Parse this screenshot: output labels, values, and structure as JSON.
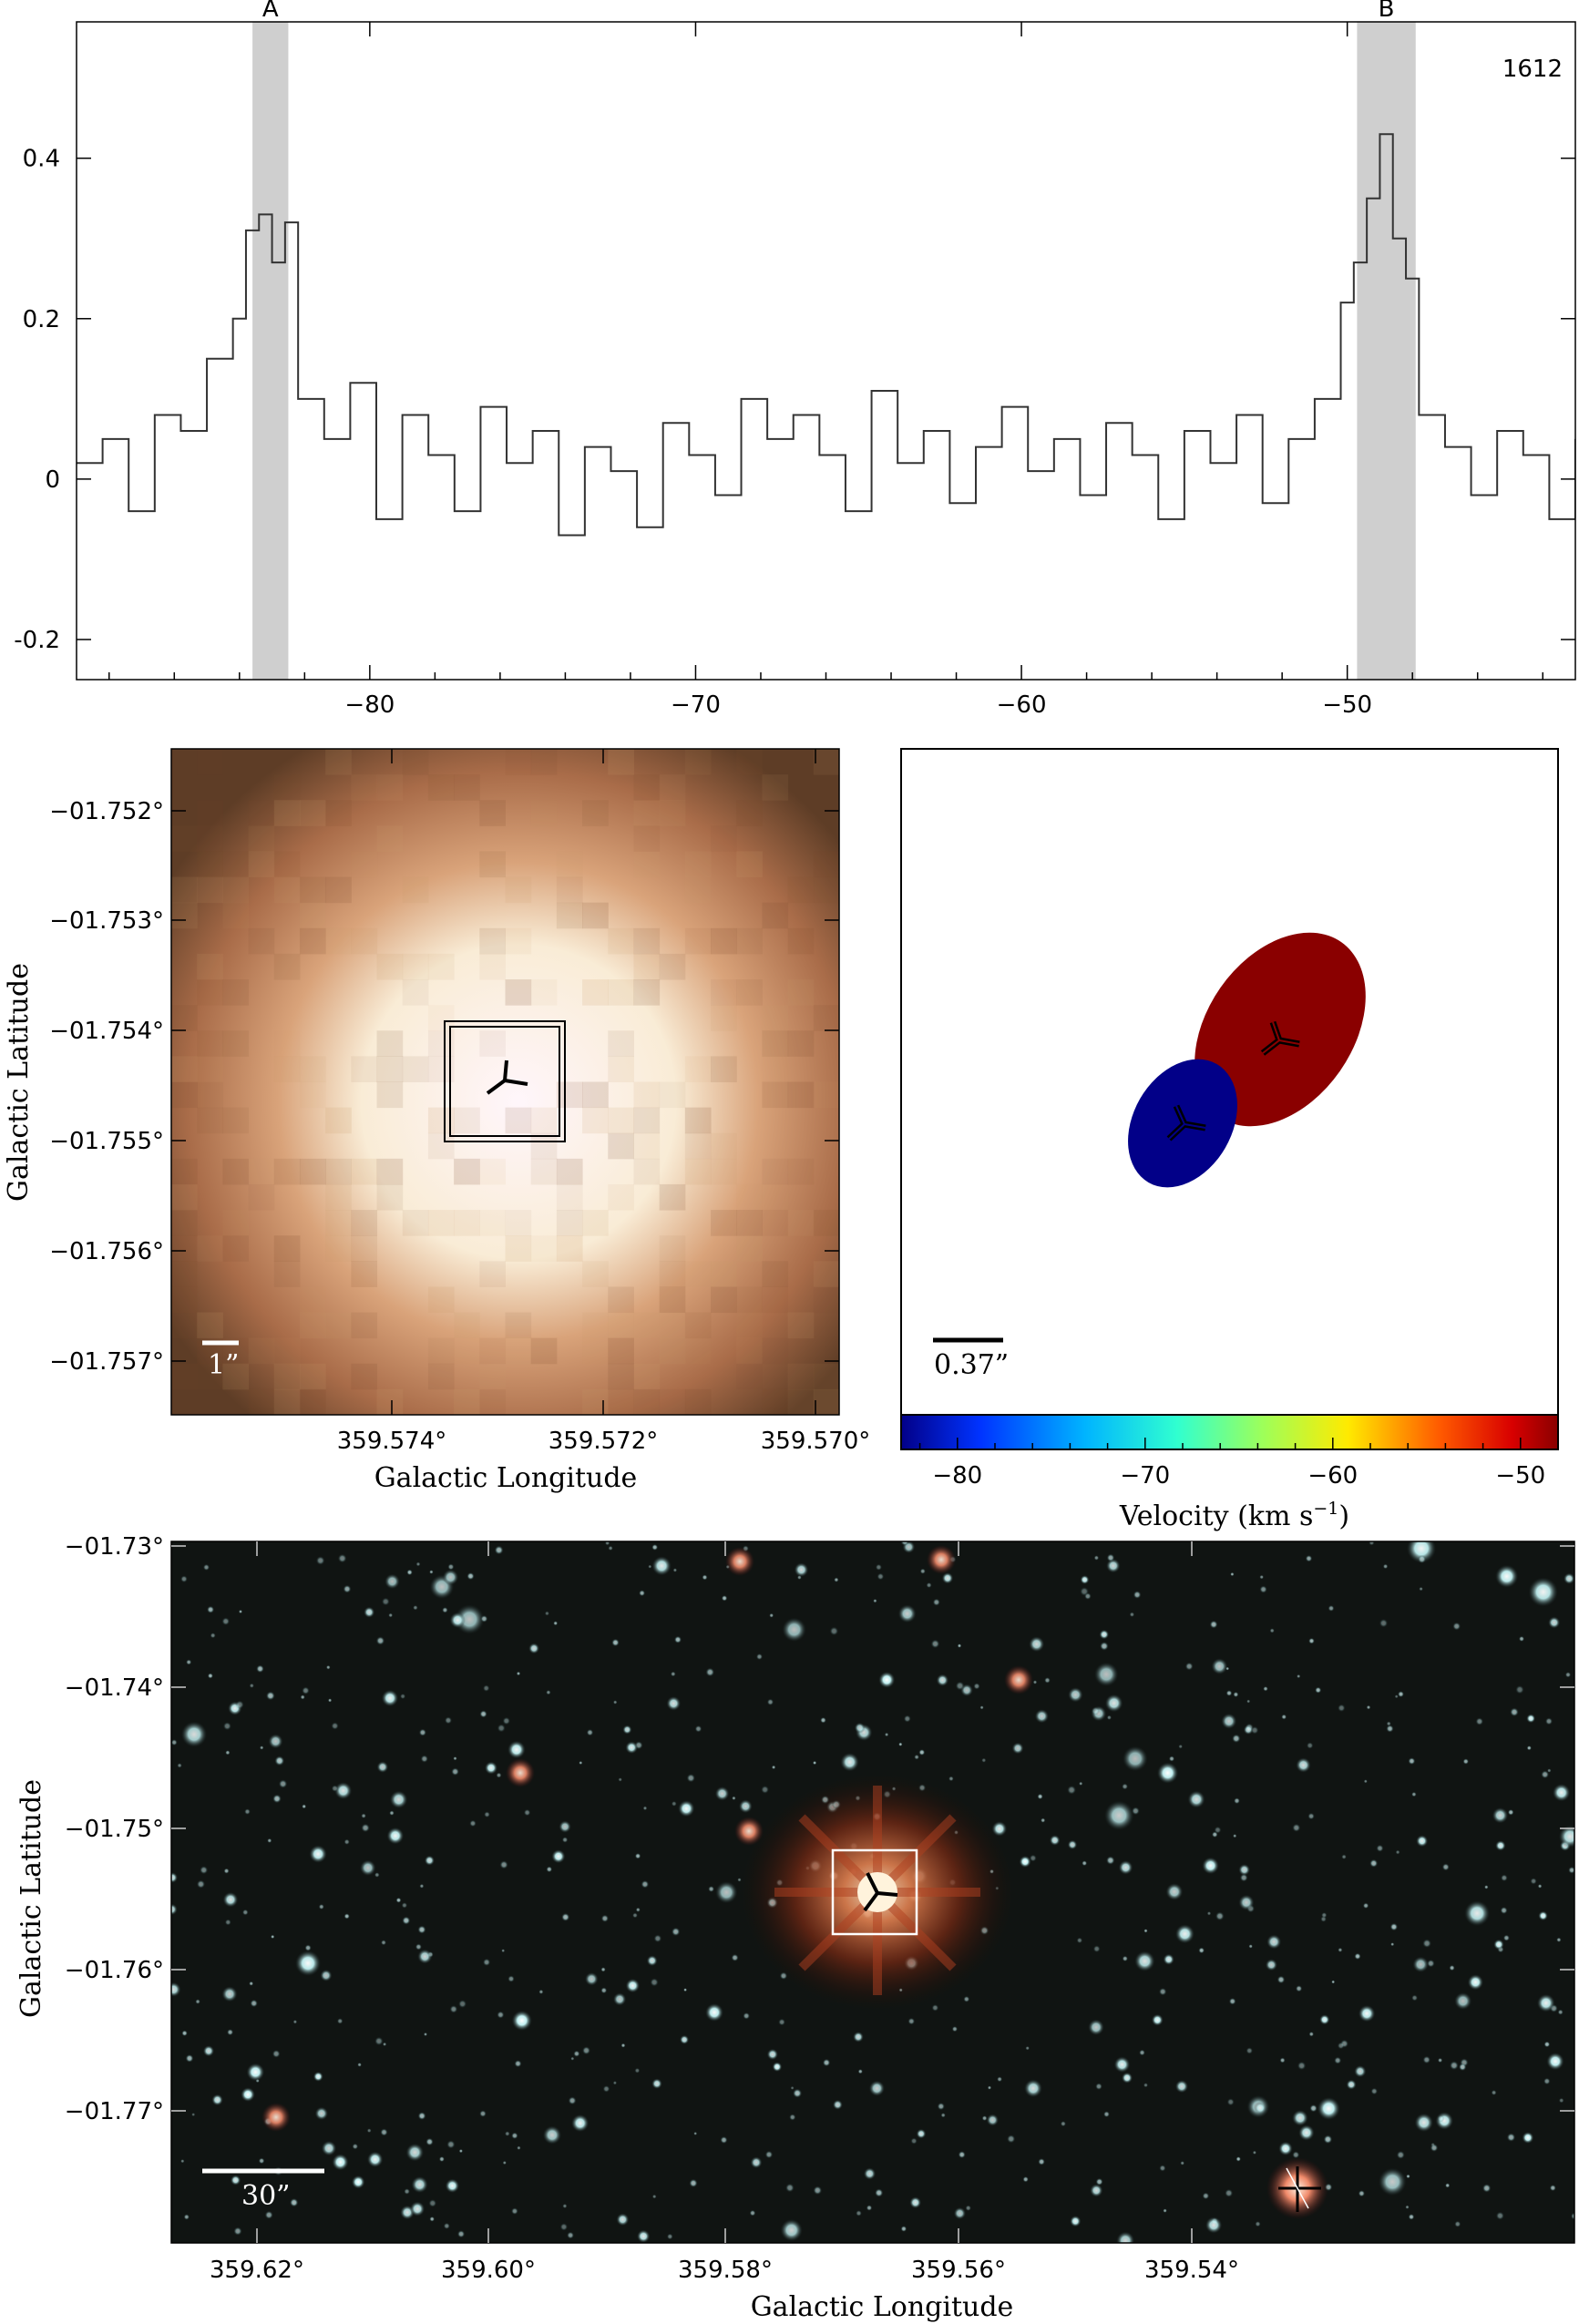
{
  "chart_data": [
    {
      "type": "line",
      "panel": "spectrum",
      "annotation": "1612",
      "xlim": [
        -89.0,
        -43.0
      ],
      "ylim": [
        -0.25,
        0.57
      ],
      "xticks": [
        -80,
        -70,
        -60,
        -50
      ],
      "xtick_labels": [
        "−80",
        "−70",
        "−60",
        "−50"
      ],
      "yticks": [
        -0.2,
        0,
        0.2,
        0.4
      ],
      "ytick_labels": [
        "-0.2",
        "0",
        "0.2",
        "0.4"
      ],
      "highlight_bands": [
        {
          "label": "A",
          "range": [
            -83.6,
            -82.5
          ]
        },
        {
          "label": "B",
          "range": [
            -49.7,
            -47.9
          ]
        }
      ],
      "series": [
        {
          "style": "step",
          "x": [
            -89.0,
            -88.2,
            -87.4,
            -86.6,
            -85.8,
            -85.0,
            -84.2,
            -83.8,
            -83.4,
            -83.0,
            -82.6,
            -82.2,
            -81.4,
            -80.6,
            -79.8,
            -79.0,
            -78.2,
            -77.4,
            -76.6,
            -75.8,
            -75.0,
            -74.2,
            -73.4,
            -72.6,
            -71.8,
            -71.0,
            -70.2,
            -69.4,
            -68.6,
            -67.8,
            -67.0,
            -66.2,
            -65.4,
            -64.6,
            -63.8,
            -63.0,
            -62.2,
            -61.4,
            -60.6,
            -59.8,
            -59.0,
            -58.2,
            -57.4,
            -56.6,
            -55.8,
            -55.0,
            -54.2,
            -53.4,
            -52.6,
            -51.8,
            -51.0,
            -50.2,
            -49.8,
            -49.4,
            -49.0,
            -48.6,
            -48.2,
            -47.8,
            -47.0,
            -46.2,
            -45.4,
            -44.6,
            -43.8,
            -43.0
          ],
          "y": [
            0.02,
            0.05,
            -0.04,
            0.08,
            0.06,
            0.15,
            0.2,
            0.31,
            0.33,
            0.27,
            0.32,
            0.1,
            0.05,
            0.12,
            -0.05,
            0.08,
            0.03,
            -0.04,
            0.09,
            0.02,
            0.06,
            -0.07,
            0.04,
            0.01,
            -0.06,
            0.07,
            0.03,
            -0.02,
            0.1,
            0.05,
            0.08,
            0.03,
            -0.04,
            0.11,
            0.02,
            0.06,
            -0.03,
            0.04,
            0.09,
            0.01,
            0.05,
            -0.02,
            0.07,
            0.03,
            -0.05,
            0.06,
            0.02,
            0.08,
            -0.03,
            0.05,
            0.1,
            0.22,
            0.27,
            0.35,
            0.43,
            0.3,
            0.25,
            0.08,
            0.04,
            -0.02,
            0.06,
            0.03,
            -0.05,
            0.05
          ]
        }
      ]
    },
    {
      "type": "heatmap",
      "panel": "zoomed image",
      "xlabel": "Galactic Longitude",
      "ylabel": "Galactic Latitude",
      "xtick_labels": [
        "359.574°",
        "359.572°",
        "359.570°"
      ],
      "ytick_labels": [
        "−01.752°",
        "−01.753°",
        "−01.754°",
        "−01.755°",
        "−01.756°",
        "−01.757°"
      ],
      "scalebar_label": "1”"
    },
    {
      "type": "scatter",
      "panel": "maser spot map",
      "scalebar_label": "0.37”",
      "colorbar_label": "Velocity (km s",
      "colorbar_label_sup": "−1",
      "colorbar_label_tail": ")",
      "colorbar_range": [
        -83.0,
        -48.0
      ],
      "colorbar_ticks": [
        -80,
        -70,
        -60,
        -50
      ],
      "colorbar_tick_labels": [
        "−80",
        "−70",
        "−60",
        "−50"
      ],
      "spots": [
        {
          "velocity": -82.5,
          "color": "#020088"
        },
        {
          "velocity": -48.5,
          "color": "#8a0000"
        }
      ]
    },
    {
      "type": "heatmap",
      "panel": "wide-field image",
      "xlabel": "Galactic Longitude",
      "ylabel": "Galactic Latitude",
      "xtick_labels": [
        "359.62°",
        "359.60°",
        "359.58°",
        "359.56°",
        "359.54°"
      ],
      "ytick_labels": [
        "−01.73°",
        "−01.74°",
        "−01.75°",
        "−01.76°",
        "−01.77°"
      ],
      "scalebar_label": "30”"
    }
  ]
}
